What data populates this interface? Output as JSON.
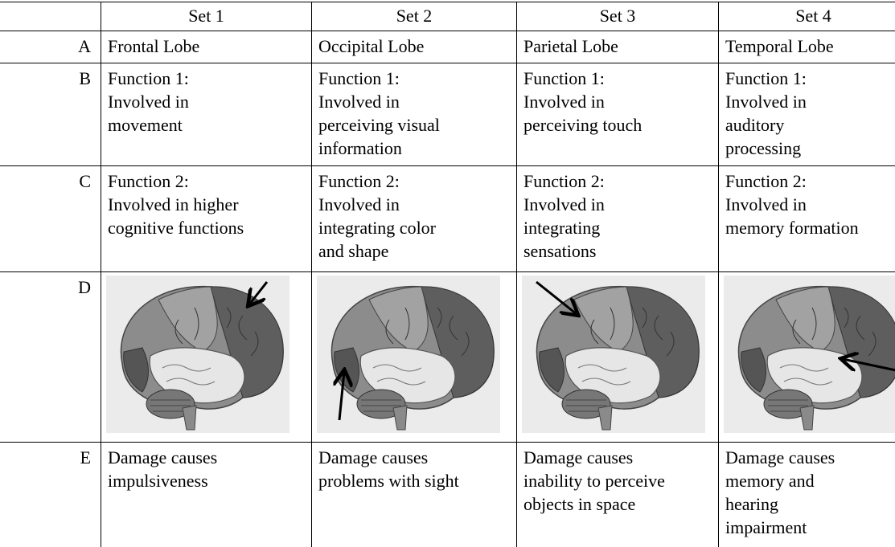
{
  "table": {
    "header": [
      "Set 1",
      "Set 2",
      "Set 3",
      "Set 4"
    ],
    "rows": [
      {
        "label": "A",
        "cells": [
          [
            "Frontal Lobe"
          ],
          [
            "Occipital Lobe"
          ],
          [
            "Parietal Lobe"
          ],
          [
            "Temporal Lobe"
          ]
        ]
      },
      {
        "label": "B",
        "cells": [
          [
            "Function 1:",
            "Involved in",
            "movement"
          ],
          [
            "Function 1:",
            "Involved in",
            "perceiving visual",
            "information"
          ],
          [
            "Function 1:",
            "Involved in",
            "perceiving touch"
          ],
          [
            "Function 1:",
            "Involved in",
            "auditory",
            "processing"
          ]
        ]
      },
      {
        "label": "C",
        "cells": [
          [
            "Function 2:",
            "Involved in higher",
            "cognitive functions"
          ],
          [
            "Function 2:",
            "Involved in",
            "integrating color",
            "and shape"
          ],
          [
            "Function 2:",
            "Involved in",
            "integrating",
            "sensations"
          ],
          [
            "Function 2:",
            "Involved in",
            "memory formation"
          ]
        ]
      },
      {
        "label": "D"
      },
      {
        "label": "E",
        "cells": [
          [
            "Damage causes",
            "impulsiveness"
          ],
          [
            "Damage causes",
            "problems with sight"
          ],
          [
            "Damage causes",
            "inability to perceive",
            "objects in space"
          ],
          [
            "Damage causes",
            "memory and",
            "hearing",
            "impairment"
          ]
        ]
      }
    ]
  }
}
